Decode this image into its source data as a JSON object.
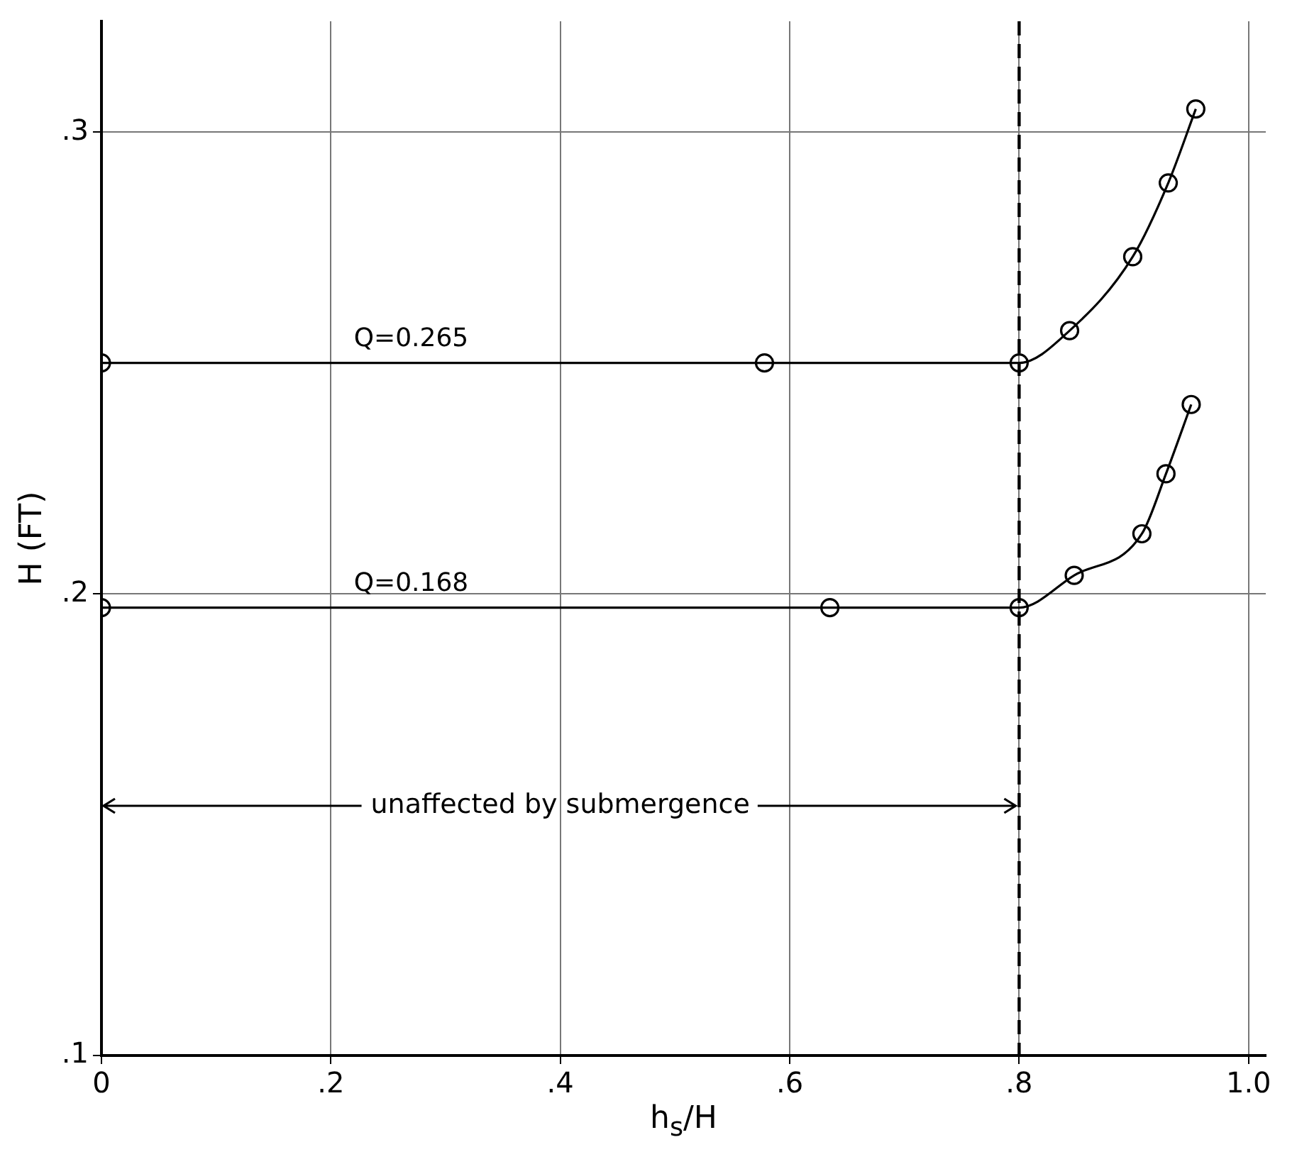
{
  "chart_data": {
    "type": "line",
    "xlabel": "h$_{s}$/H",
    "ylabel": "H (FT)",
    "xlim": [
      0,
      1.015
    ],
    "ylim": [
      0.1,
      0.324
    ],
    "xticks": [
      0,
      {
        "value": 0.2,
        "label": ".2"
      },
      {
        "value": 0.4,
        "label": ".4"
      },
      {
        "value": 0.6,
        "label": ".6"
      },
      {
        "value": 0.8,
        "label": ".8"
      },
      {
        "value": 1.0,
        "label": "1.0"
      }
    ],
    "yticks": [
      {
        "value": 0.1,
        "label": ".1"
      },
      {
        "value": 0.2,
        "label": ".2"
      },
      {
        "value": 0.3,
        "label": ".3"
      }
    ],
    "series": [
      {
        "name": "Q=0.265",
        "color": "#000000",
        "x": [
          0,
          0.578,
          0.8,
          0.844,
          0.899,
          0.93,
          0.954
        ],
        "values": [
          0.25,
          0.25,
          0.25,
          0.257,
          0.273,
          0.289,
          0.305
        ]
      },
      {
        "name": "Q=0.168",
        "color": "#000000",
        "x": [
          0,
          0.635,
          0.8,
          0.848,
          0.907,
          0.928,
          0.95
        ],
        "values": [
          0.197,
          0.197,
          0.197,
          0.204,
          0.213,
          0.226,
          0.241
        ]
      }
    ],
    "ref_lines": [
      {
        "axis": "x",
        "value": 0.8,
        "line_style": "dashed",
        "color": "#000000"
      }
    ],
    "annotations": [
      {
        "text": "unaffected by submergence",
        "x": 0.8,
        "y": 0.154
      }
    ],
    "marker": "circle",
    "line_style": "solid",
    "grid": true,
    "legend": false
  }
}
